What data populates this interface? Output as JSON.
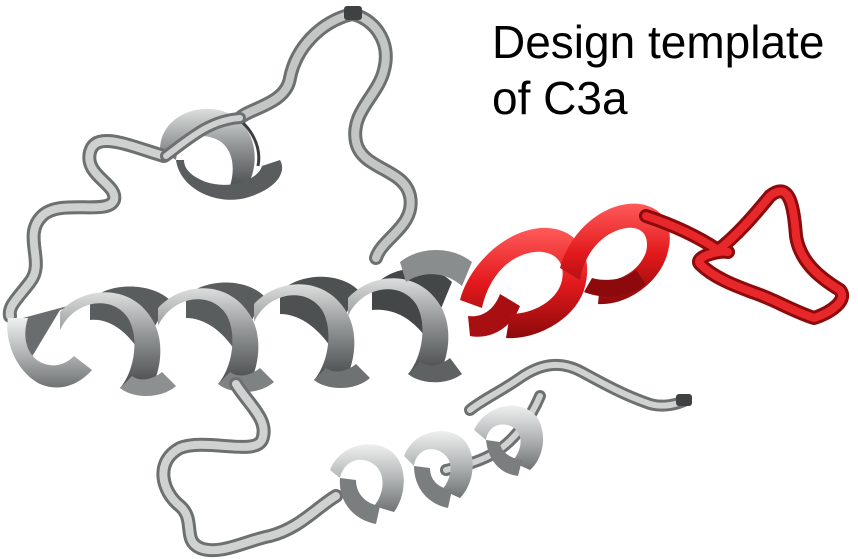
{
  "caption": {
    "line1": "Design template",
    "line2": "of C3a"
  },
  "colors": {
    "background": "#ffffff",
    "ribbon_grey": "#9a9c9c",
    "ribbon_dark": "#4f5252",
    "ribbon_light": "#c9cbcb",
    "highlight": "#e3191c",
    "highlight_dark": "#a80f12"
  }
}
